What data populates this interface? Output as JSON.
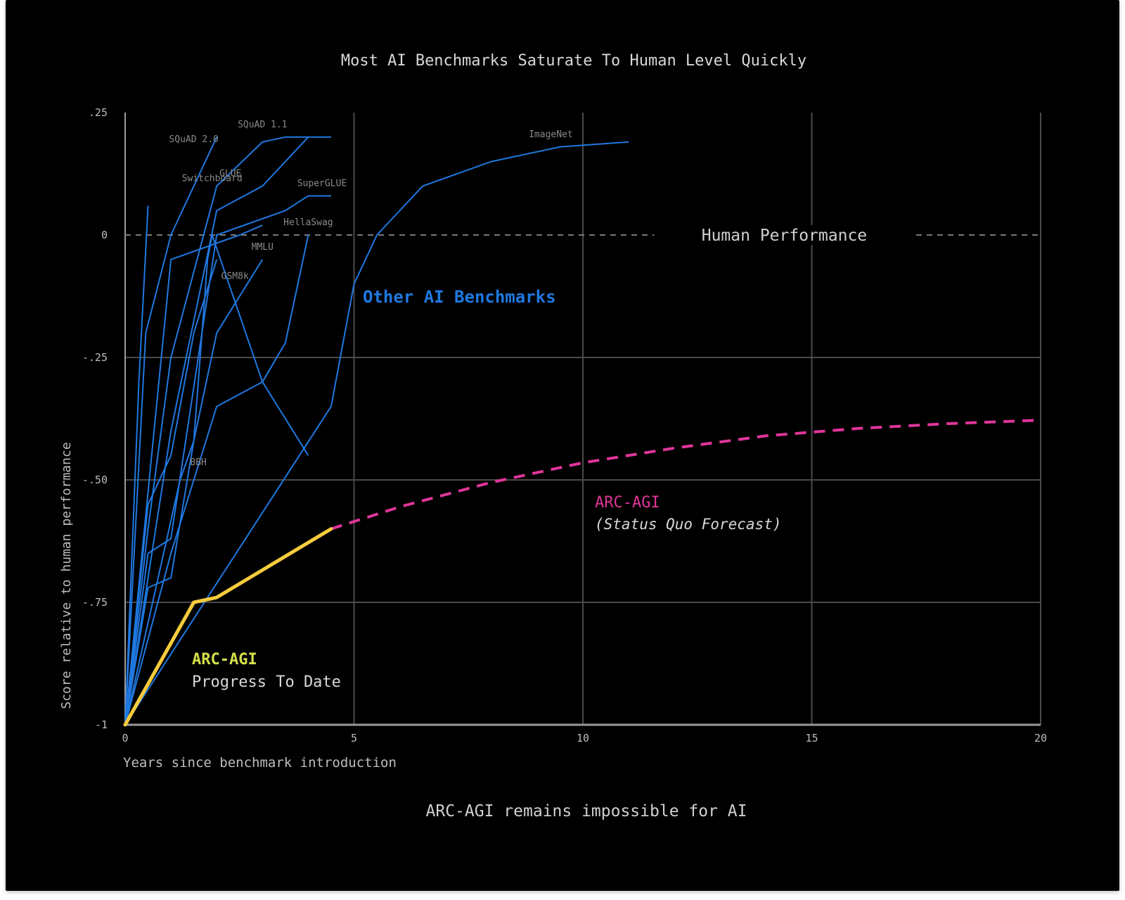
{
  "chart_data": {
    "type": "line",
    "title": "Most AI Benchmarks Saturate To Human Level Quickly",
    "xlabel": "Years since benchmark introduction",
    "ylabel": "Score relative to human performance",
    "footer": "ARC-AGI remains impossible for AI",
    "xlim": [
      0,
      20
    ],
    "ylim": [
      -1,
      0.25
    ],
    "x_ticks": [
      {
        "v": 0,
        "label": "0"
      },
      {
        "v": 5,
        "label": "5"
      },
      {
        "v": 10,
        "label": "10"
      },
      {
        "v": 15,
        "label": "15"
      },
      {
        "v": 20,
        "label": "20"
      }
    ],
    "y_ticks": [
      {
        "v": 0.25,
        "label": ".25"
      },
      {
        "v": 0,
        "label": "0"
      },
      {
        "v": -0.25,
        "label": "-.25"
      },
      {
        "v": -0.5,
        "label": "-.50"
      },
      {
        "v": -0.75,
        "label": "-.75"
      },
      {
        "v": -1,
        "label": "-1"
      }
    ],
    "grid": true,
    "reference_line": {
      "y": 0,
      "label": "Human Performance",
      "style": "dashed"
    },
    "group_labels": {
      "other": "Other AI Benchmarks",
      "arc_title": "ARC-AGI",
      "arc_progress": "Progress To Date",
      "forecast_title": "ARC-AGI",
      "forecast_sub": "(Status Quo Forecast)"
    },
    "colors": {
      "benchmarks": "#1f78e0",
      "arc_progress": "#f6cc3c",
      "arc_progress_label": "#d4e04a",
      "forecast": "#e0359a",
      "grid": "#4a4a4a",
      "text": "#cfcfcf",
      "background": "#000000"
    },
    "series": [
      {
        "name": "Switchboard",
        "points": [
          [
            0,
            -1
          ],
          [
            0.3,
            -0.3
          ],
          [
            0.5,
            0.06
          ]
        ]
      },
      {
        "name": "SQuAD 2.0",
        "points": [
          [
            0,
            -1
          ],
          [
            0.45,
            -0.2
          ],
          [
            1,
            0
          ],
          [
            2,
            0.2
          ]
        ]
      },
      {
        "name": "SQuAD 1.1",
        "points": [
          [
            0,
            -1
          ],
          [
            0.5,
            -0.6
          ],
          [
            1,
            -0.25
          ],
          [
            2,
            0.1
          ],
          [
            3,
            0.19
          ],
          [
            3.5,
            0.2
          ],
          [
            4.5,
            0.2
          ]
        ]
      },
      {
        "name": "GLUE",
        "points": [
          [
            0,
            -1
          ],
          [
            0.5,
            -0.7
          ],
          [
            1,
            -0.4
          ],
          [
            2,
            0.05
          ],
          [
            3,
            0.1
          ],
          [
            4,
            0.2
          ]
        ]
      },
      {
        "name": "SuperGLUE",
        "points": [
          [
            0,
            -1
          ],
          [
            0.5,
            -0.65
          ],
          [
            1,
            -0.62
          ],
          [
            2,
            0
          ],
          [
            3.5,
            0.05
          ],
          [
            4,
            0.08
          ],
          [
            4.5,
            0.08
          ]
        ]
      },
      {
        "name": "HellaSwag",
        "points": [
          [
            0,
            -1
          ],
          [
            0.5,
            -0.72
          ],
          [
            1,
            -0.7
          ],
          [
            1.5,
            -0.42
          ],
          [
            1.8,
            -0.05
          ],
          [
            1.9,
            0
          ],
          [
            3,
            -0.3
          ],
          [
            3.5,
            -0.22
          ],
          [
            4,
            0
          ]
        ]
      },
      {
        "name": "ImageNet",
        "points": [
          [
            0,
            -1
          ],
          [
            4.5,
            -0.35
          ],
          [
            5,
            -0.1
          ],
          [
            5.5,
            0
          ],
          [
            6.5,
            0.1
          ],
          [
            8,
            0.15
          ],
          [
            9.5,
            0.18
          ],
          [
            11,
            0.19
          ]
        ]
      },
      {
        "name": "MMLU",
        "points": [
          [
            0,
            -1
          ],
          [
            1.2,
            -0.5
          ],
          [
            1.5,
            -0.42
          ],
          [
            2,
            -0.2
          ],
          [
            3,
            -0.05
          ]
        ]
      },
      {
        "name": "GSM8k",
        "points": [
          [
            0,
            -1
          ],
          [
            0.5,
            -0.55
          ],
          [
            1,
            -0.45
          ],
          [
            1.5,
            -0.2
          ],
          [
            2,
            -0.05
          ]
        ]
      },
      {
        "name": "BBH",
        "points": [
          [
            0,
            -1
          ],
          [
            1,
            -0.65
          ],
          [
            2,
            -0.35
          ],
          [
            3,
            -0.3
          ],
          [
            4,
            -0.45
          ]
        ]
      },
      {
        "name": "",
        "points": [
          [
            0,
            -1
          ],
          [
            1,
            -0.05
          ],
          [
            2.5,
            0
          ],
          [
            3,
            0.02
          ]
        ]
      }
    ],
    "series_label_font": 13,
    "arc_progress": {
      "name": "ARC-AGI Progress To Date",
      "points": [
        [
          0,
          -1
        ],
        [
          1.5,
          -0.75
        ],
        [
          2,
          -0.74
        ],
        [
          4.5,
          -0.6
        ]
      ]
    },
    "arc_forecast": {
      "name": "ARC-AGI (Status Quo Forecast)",
      "points": [
        [
          4.5,
          -0.6
        ],
        [
          6,
          -0.555
        ],
        [
          8,
          -0.505
        ],
        [
          10,
          -0.465
        ],
        [
          12,
          -0.435
        ],
        [
          14,
          -0.41
        ],
        [
          16,
          -0.395
        ],
        [
          18,
          -0.385
        ],
        [
          20,
          -0.378
        ]
      ]
    }
  }
}
